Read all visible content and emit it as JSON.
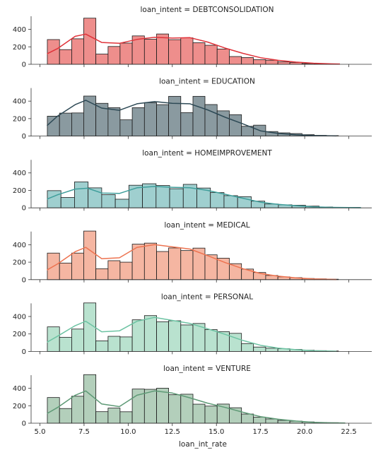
{
  "chart_data": {
    "type": "histogram",
    "xlabel": "loan_int_rate",
    "xlim": [
      4.5,
      23.8
    ],
    "ylim": [
      0,
      550
    ],
    "xticks": [
      "5.0",
      "7.5",
      "10.0",
      "12.5",
      "15.0",
      "17.5",
      "20.0",
      "22.5"
    ],
    "yticks": [
      "0",
      "200",
      "400"
    ],
    "kde": true,
    "panels": [
      {
        "title": "loan_intent = DEBTCONSOLIDATION",
        "bar_color": "#ee8e8c",
        "line_color": "#e0333a",
        "bin_edges": [
          5.42,
          6.11,
          6.8,
          7.48,
          8.17,
          8.86,
          9.54,
          10.23,
          10.92,
          11.61,
          12.29,
          12.98,
          13.67,
          14.35,
          15.04,
          15.73,
          16.42,
          17.1,
          17.79,
          18.48,
          19.16,
          19.85,
          20.54,
          21.23,
          21.91
        ],
        "counts": [
          283,
          168,
          292,
          528,
          117,
          204,
          243,
          325,
          287,
          347,
          282,
          303,
          247,
          218,
          175,
          89,
          77,
          53,
          47,
          27,
          20,
          9,
          6,
          3
        ],
        "kde_x": [
          5.4,
          6.0,
          7.0,
          7.6,
          8.5,
          9.5,
          10.5,
          11.5,
          12.5,
          13.5,
          14.5,
          15.5,
          16.5,
          17.5,
          18.5,
          19.5,
          20.5,
          21.5,
          22.0
        ],
        "kde_y": [
          120,
          180,
          320,
          345,
          250,
          240,
          285,
          310,
          300,
          305,
          255,
          185,
          125,
          75,
          45,
          25,
          12,
          5,
          3
        ]
      },
      {
        "title": "loan_intent = EDUCATION",
        "bar_color": "#8a9aa0",
        "line_color": "#2e4a56",
        "bin_edges": [
          5.42,
          6.11,
          6.8,
          7.48,
          8.17,
          8.86,
          9.54,
          10.23,
          10.92,
          11.61,
          12.29,
          12.98,
          13.67,
          14.35,
          15.04,
          15.73,
          16.42,
          17.1,
          17.79,
          18.48,
          19.16,
          19.85,
          20.54,
          21.23,
          21.91
        ],
        "counts": [
          228,
          263,
          265,
          458,
          375,
          325,
          186,
          325,
          383,
          360,
          455,
          268,
          455,
          361,
          289,
          245,
          112,
          125,
          52,
          37,
          29,
          16,
          8,
          5
        ],
        "kde_x": [
          5.4,
          6.0,
          7.0,
          7.6,
          8.5,
          9.5,
          10.5,
          11.5,
          12.5,
          13.5,
          14.5,
          15.5,
          16.5,
          17.5,
          18.5,
          19.5,
          20.5,
          21.5,
          21.8
        ],
        "kde_y": [
          120,
          230,
          360,
          410,
          320,
          295,
          370,
          395,
          375,
          370,
          300,
          215,
          140,
          60,
          30,
          15,
          6,
          3,
          2
        ]
      },
      {
        "title": "loan_intent = HOMEIMPROVEMENT",
        "bar_color": "#9fcfcf",
        "line_color": "#3f9e9b",
        "bin_edges": [
          5.42,
          6.19,
          6.96,
          7.73,
          8.5,
          9.27,
          10.04,
          10.81,
          11.58,
          12.35,
          13.12,
          13.89,
          14.66,
          15.43,
          16.2,
          16.97,
          17.74,
          18.51,
          19.28,
          20.05,
          20.82,
          21.59,
          22.36,
          23.13
        ],
        "counts": [
          197,
          119,
          297,
          229,
          151,
          99,
          259,
          276,
          256,
          219,
          269,
          227,
          175,
          140,
          128,
          77,
          44,
          35,
          30,
          20,
          10,
          6,
          5
        ],
        "kde_x": [
          5.4,
          6.0,
          7.0,
          7.7,
          8.5,
          9.5,
          10.5,
          11.5,
          12.5,
          13.5,
          14.5,
          15.5,
          16.5,
          17.5,
          18.5,
          19.5,
          20.5,
          21.5,
          22.5,
          23.2
        ],
        "kde_y": [
          100,
          150,
          215,
          225,
          170,
          165,
          230,
          245,
          235,
          230,
          200,
          155,
          110,
          65,
          40,
          25,
          12,
          6,
          3,
          2
        ]
      },
      {
        "title": "loan_intent = MEDICAL",
        "bar_color": "#f5b6a2",
        "line_color": "#ed7350",
        "bin_edges": [
          5.42,
          6.11,
          6.8,
          7.48,
          8.17,
          8.86,
          9.54,
          10.23,
          10.92,
          11.61,
          12.29,
          12.98,
          13.67,
          14.35,
          15.04,
          15.73,
          16.42,
          17.1,
          17.79,
          18.48,
          19.16,
          19.85,
          20.54,
          21.23,
          21.91
        ],
        "counts": [
          304,
          190,
          304,
          556,
          125,
          217,
          200,
          406,
          418,
          322,
          363,
          333,
          361,
          284,
          246,
          183,
          121,
          82,
          48,
          32,
          23,
          13,
          9,
          5
        ],
        "kde_x": [
          5.4,
          6.0,
          7.0,
          7.6,
          8.5,
          9.5,
          10.5,
          11.5,
          12.5,
          13.5,
          14.5,
          15.5,
          16.5,
          17.5,
          18.5,
          19.5,
          20.5,
          21.5,
          21.8
        ],
        "kde_y": [
          110,
          180,
          320,
          370,
          240,
          250,
          370,
          400,
          375,
          350,
          275,
          195,
          125,
          70,
          40,
          20,
          8,
          3,
          2
        ]
      },
      {
        "title": "loan_intent = PERSONAL",
        "bar_color": "#b9e2cf",
        "line_color": "#6dc3a3",
        "bin_edges": [
          5.42,
          6.11,
          6.8,
          7.48,
          8.17,
          8.86,
          9.54,
          10.23,
          10.92,
          11.61,
          12.29,
          12.98,
          13.67,
          14.35,
          15.04,
          15.73,
          16.42,
          17.1,
          17.79,
          18.48,
          19.16,
          19.85,
          20.54,
          21.23,
          21.91
        ],
        "counts": [
          281,
          162,
          256,
          555,
          121,
          173,
          166,
          362,
          410,
          339,
          351,
          303,
          320,
          250,
          227,
          207,
          90,
          50,
          37,
          31,
          23,
          14,
          9,
          5
        ],
        "kde_x": [
          5.4,
          6.0,
          7.0,
          7.6,
          8.5,
          9.5,
          10.5,
          11.5,
          12.5,
          13.5,
          14.5,
          15.5,
          16.5,
          17.5,
          18.5,
          19.5,
          20.5,
          21.5,
          21.8
        ],
        "kde_y": [
          105,
          175,
          295,
          345,
          225,
          235,
          345,
          390,
          355,
          320,
          260,
          195,
          125,
          70,
          38,
          20,
          8,
          3,
          2
        ]
      },
      {
        "title": "loan_intent = VENTURE",
        "bar_color": "#b3cfbb",
        "line_color": "#5e9a76",
        "bin_edges": [
          5.42,
          6.11,
          6.8,
          7.48,
          8.17,
          8.86,
          9.54,
          10.23,
          10.92,
          11.61,
          12.29,
          12.98,
          13.67,
          14.35,
          15.04,
          15.73,
          16.42,
          17.1,
          17.79,
          18.48,
          19.16,
          19.85,
          20.54,
          21.23,
          21.91
        ],
        "counts": [
          294,
          168,
          309,
          556,
          132,
          173,
          131,
          391,
          388,
          401,
          326,
          332,
          218,
          196,
          219,
          177,
          105,
          70,
          49,
          32,
          24,
          15,
          9,
          6
        ],
        "kde_x": [
          5.4,
          6.0,
          7.0,
          7.6,
          8.5,
          9.5,
          10.5,
          11.5,
          12.5,
          13.5,
          14.5,
          15.5,
          16.5,
          17.5,
          18.5,
          19.5,
          20.5,
          21.5,
          22.3
        ],
        "kde_y": [
          110,
          180,
          320,
          370,
          220,
          190,
          320,
          370,
          345,
          290,
          230,
          180,
          125,
          75,
          45,
          25,
          10,
          4,
          2
        ]
      }
    ]
  }
}
